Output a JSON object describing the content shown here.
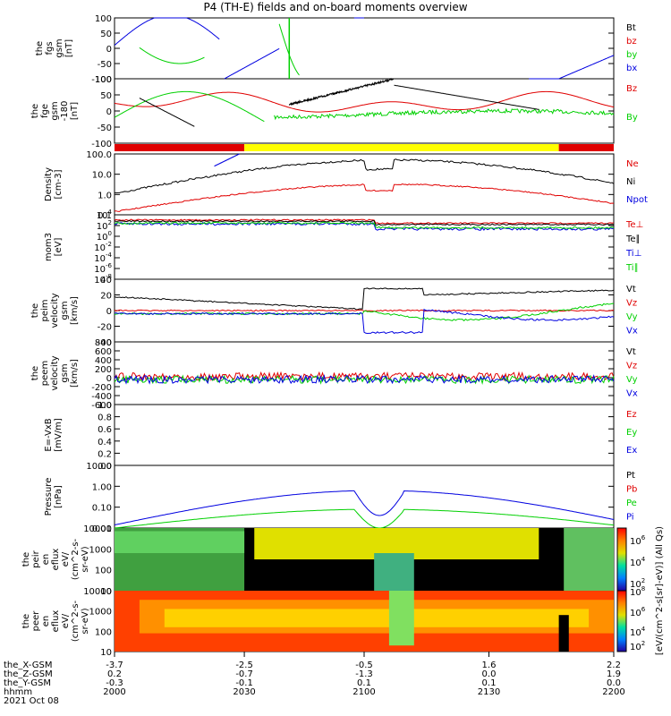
{
  "title": "P4 (TH-E) fields and on-board moments overview",
  "colors": {
    "black": "#000000",
    "red": "#e00000",
    "green": "#00d000",
    "blue": "#0000e0",
    "yellow": "#ffff00",
    "orange": "#ff8000"
  },
  "chart_data": [
    {
      "id": "fgs",
      "type": "line",
      "ylabel": [
        "the",
        "fgs",
        "gsm",
        "[nT]"
      ],
      "yticks": [
        "100",
        "50",
        "0",
        "-50",
        "-100"
      ],
      "ylim": [
        -100,
        100
      ],
      "legend": [
        {
          "name": "Bt",
          "color": "black"
        },
        {
          "name": "bz",
          "color": "red"
        },
        {
          "name": "by",
          "color": "green"
        },
        {
          "name": "bx",
          "color": "blue"
        }
      ]
    },
    {
      "id": "fge",
      "type": "line",
      "ylabel": [
        "the",
        "fge",
        "gsm",
        "-180",
        "[nT]"
      ],
      "yticks": [
        "100",
        "50",
        "0",
        "-50",
        "-100"
      ],
      "ylim": [
        -100,
        100
      ],
      "legend": [
        {
          "name": "Bz",
          "color": "red"
        },
        {
          "name": "By",
          "color": "green"
        }
      ]
    },
    {
      "id": "density",
      "type": "line",
      "log": true,
      "ylabel": [
        "Density",
        "[cm-3]"
      ],
      "yticks": [
        "100.0",
        "10.0",
        "1.0",
        "0.1"
      ],
      "legend": [
        {
          "name": "Ne",
          "color": "red"
        },
        {
          "name": "Ni",
          "color": "black"
        },
        {
          "name": "Npot",
          "color": "blue"
        }
      ]
    },
    {
      "id": "moms",
      "type": "line",
      "log": true,
      "ylabel": [
        "mom3",
        "[eV]"
      ],
      "yticks": [
        "10^4",
        "10^2",
        "10^0",
        "10^-2",
        "10^-4",
        "10^-6",
        "10^-8"
      ],
      "legend": [
        {
          "name": "Te⊥",
          "color": "red"
        },
        {
          "name": "Te∥",
          "color": "black"
        },
        {
          "name": "Ti⊥",
          "color": "blue"
        },
        {
          "name": "Ti∥",
          "color": "green"
        }
      ]
    },
    {
      "id": "peim",
      "type": "line",
      "ylabel": [
        "the",
        "peim",
        "velocity",
        "gsm",
        "[km/s]"
      ],
      "yticks": [
        "40",
        "20",
        "0",
        "-20",
        "-40"
      ],
      "ylim": [
        -40,
        40
      ],
      "legend": [
        {
          "name": "Vt",
          "color": "black"
        },
        {
          "name": "Vz",
          "color": "red"
        },
        {
          "name": "Vy",
          "color": "green"
        },
        {
          "name": "Vx",
          "color": "blue"
        }
      ]
    },
    {
      "id": "peem",
      "type": "line",
      "ylabel": [
        "the",
        "peem",
        "velocity",
        "gsm",
        "[km/s]"
      ],
      "yticks": [
        "800",
        "600",
        "400",
        "200",
        "0",
        "-200",
        "-400",
        "-600"
      ],
      "ylim": [
        -600,
        800
      ],
      "legend": [
        {
          "name": "Vt",
          "color": "black"
        },
        {
          "name": "Vz",
          "color": "red"
        },
        {
          "name": "Vy",
          "color": "green"
        },
        {
          "name": "Vx",
          "color": "blue"
        }
      ]
    },
    {
      "id": "efield",
      "type": "line",
      "ylabel": [
        "E=-VxB",
        "[mV/m]"
      ],
      "yticks": [
        "1.0",
        "0.8",
        "0.6",
        "0.4",
        "0.2",
        "0.0"
      ],
      "ylim": [
        0,
        1
      ],
      "legend": [
        {
          "name": "Ez",
          "color": "red"
        },
        {
          "name": "Ey",
          "color": "green"
        },
        {
          "name": "Ex",
          "color": "blue"
        }
      ]
    },
    {
      "id": "pressure",
      "type": "line",
      "log": true,
      "ylabel": [
        "Pressure",
        "[nPa]"
      ],
      "yticks": [
        "10.00",
        "1.00",
        "0.10",
        "0.01"
      ],
      "legend": [
        {
          "name": "Pt",
          "color": "black"
        },
        {
          "name": "Pb",
          "color": "red"
        },
        {
          "name": "Pe",
          "color": "green"
        },
        {
          "name": "Pi",
          "color": "blue"
        }
      ]
    },
    {
      "id": "peir",
      "type": "heatmap",
      "ylabel": [
        "the",
        "peir",
        "en",
        "eflux",
        "eV/",
        "(cm^2-s-",
        "sr-eV)"
      ],
      "yticks": [
        "10000",
        "1000",
        "100",
        "10"
      ]
    },
    {
      "id": "peer",
      "type": "heatmap",
      "ylabel": [
        "the",
        "peer",
        "en",
        "eflux",
        "eV/",
        "(cm^2-s-",
        "sr-eV)"
      ],
      "yticks": [
        "10000",
        "1000",
        "100",
        "10"
      ]
    }
  ],
  "colorbar": {
    "ticks": [
      "10^6",
      "10^4",
      "10^2",
      "10^8",
      "10^6",
      "10^4",
      "10^2"
    ],
    "label": "[eV/(cm^2-s[sr]-eV)] (All Qs)"
  },
  "xaxis": {
    "row_labels": [
      "the_X-GSM",
      "the_Z-GSM",
      "the_Y-GSM",
      "hhmm",
      "2021 Oct 08"
    ],
    "ticks": [
      {
        "x_gsm": "-3.7",
        "z_gsm": "0.2",
        "y_gsm": "-0.3",
        "hhmm": "2000"
      },
      {
        "x_gsm": "-2.5",
        "z_gsm": "-0.7",
        "y_gsm": "-0.1",
        "hhmm": "2030"
      },
      {
        "x_gsm": "-0.5",
        "z_gsm": "-1.3",
        "y_gsm": "0.1",
        "hhmm": "2100"
      },
      {
        "x_gsm": "1.6",
        "z_gsm": "0.0",
        "y_gsm": "0.1",
        "hhmm": "2130"
      },
      {
        "x_gsm": "2.2",
        "z_gsm": "1.9",
        "y_gsm": "0.0",
        "hhmm": "2200"
      }
    ]
  }
}
